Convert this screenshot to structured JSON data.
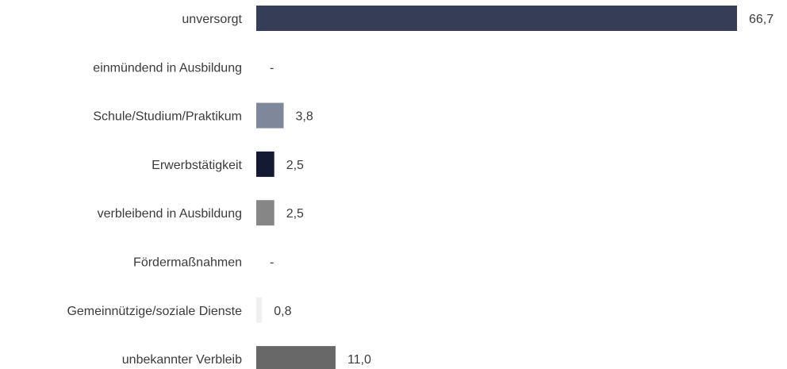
{
  "chart_data": {
    "type": "bar",
    "orientation": "horizontal",
    "categories": [
      "unversorgt",
      "einmündend in Ausbildung",
      "Schule/Studium/Praktikum",
      "Erwerbstätigkeit",
      "verbleibend in Ausbildung",
      "Fördermaßnahmen",
      "Gemeinnützige/soziale Dienste",
      "unbekannter Verbleib"
    ],
    "values": [
      66.7,
      0,
      3.8,
      2.5,
      2.5,
      0,
      0.8,
      11.0
    ],
    "value_labels": [
      "66,7",
      "-",
      "3,8",
      "2,5",
      "2,5",
      "-",
      "0,8",
      "11,0"
    ],
    "colors": [
      "#363d57",
      "#ffffff",
      "#7f879b",
      "#151a33",
      "#868686",
      "#ffffff",
      "#f0f0f0",
      "#686868"
    ],
    "xlim": [
      0,
      66.7
    ],
    "grid": false,
    "title": "",
    "xlabel": "",
    "ylabel": ""
  }
}
